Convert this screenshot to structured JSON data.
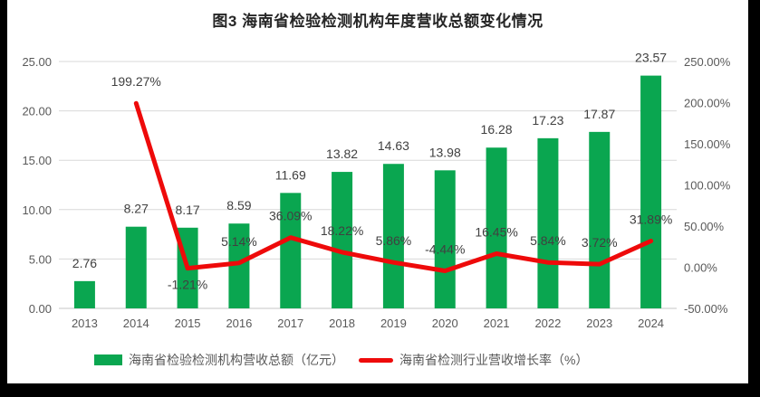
{
  "title": "图3 海南省检验检测机构年度营收总额变化情况",
  "colors": {
    "background": "#000000",
    "panel": "#ffffff",
    "grid": "#d9d9d9",
    "axis_line": "#c6c6c6",
    "axis_text": "#595959",
    "data_label": "#404040",
    "title_text": "#262626",
    "legend_text": "#595959",
    "bar": "#0aa650",
    "line": "#ee0a0a"
  },
  "chart_data": {
    "type": "bar",
    "subtype": "combo-bar-line-dual-axis",
    "title": "图3 海南省检验检测机构年度营收总额变化情况",
    "categories": [
      "2013",
      "2014",
      "2015",
      "2016",
      "2017",
      "2018",
      "2019",
      "2020",
      "2021",
      "2022",
      "2023",
      "2024"
    ],
    "series": [
      {
        "name": "海南省检验检测机构营收总额（亿元）",
        "type": "bar",
        "axis": "left",
        "color": "#0aa650",
        "values": [
          2.76,
          8.27,
          8.17,
          8.59,
          11.69,
          13.82,
          14.63,
          13.98,
          16.28,
          17.23,
          17.87,
          23.57
        ],
        "labels": [
          "2.76",
          "8.27",
          "8.17",
          "8.59",
          "11.69",
          "13.82",
          "14.63",
          "13.98",
          "16.28",
          "17.23",
          "17.87",
          "23.57"
        ]
      },
      {
        "name": "海南省检测行业营收增长率（%）",
        "type": "line",
        "axis": "right",
        "color": "#ee0a0a",
        "values": [
          null,
          199.27,
          -1.21,
          5.14,
          36.09,
          18.22,
          5.86,
          -4.44,
          16.45,
          5.84,
          3.72,
          31.89
        ],
        "labels": [
          null,
          "199.27%",
          "-1.21%",
          "5.14%",
          "36.09%",
          "18.22%",
          "5.86%",
          "-4.44%",
          "16.45%",
          "5.84%",
          "3.72%",
          "31.89%"
        ],
        "label_positions": [
          null,
          "above",
          "below",
          "above",
          "above",
          "above",
          "above",
          "above",
          "above",
          "above",
          "above",
          "above"
        ]
      }
    ],
    "left_axis": {
      "min": 0,
      "max": 25,
      "step": 5,
      "tick_labels": [
        "0.00",
        "5.00",
        "10.00",
        "15.00",
        "20.00",
        "25.00"
      ]
    },
    "right_axis": {
      "min": -50,
      "max": 250,
      "step": 50,
      "tick_labels": [
        "-50.00%",
        "0.00%",
        "50.00%",
        "100.00%",
        "150.00%",
        "200.00%",
        "250.00%"
      ]
    },
    "grid": "horizontal",
    "legend_position": "bottom"
  },
  "legend": {
    "items": [
      {
        "label": "海南省检验检测机构营收总额（亿元）",
        "marker": "bar-swatch",
        "color": "#0aa650"
      },
      {
        "label": "海南省检测行业营收增长率（%）",
        "marker": "line-swatch",
        "color": "#ee0a0a"
      }
    ]
  }
}
